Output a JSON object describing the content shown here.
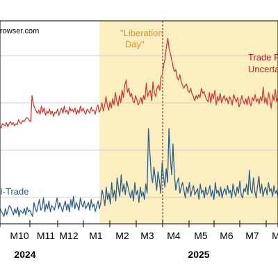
{
  "source_text": "rowser.com",
  "chart_data": {
    "type": "line",
    "title": "",
    "xlabel": "",
    "ylabel": "",
    "x_tick_labels": [
      "M10",
      "M11",
      "M12",
      "M1",
      "M2",
      "M3",
      "M4",
      "M5",
      "M6",
      "M7",
      "M"
    ],
    "year_labels": [
      "2024",
      "2025"
    ],
    "grid": true,
    "shaded_region": {
      "start": "M1 2025",
      "end": "end",
      "color": "#fbefc2"
    },
    "event_line": {
      "at": "2025-04-02",
      "color": "#8b1a1a"
    },
    "annotations": [
      {
        "text_lines": [
          "\"Liberation",
          "Day\""
        ],
        "color": "#e8901a"
      },
      {
        "text_lines": [
          "Trade P",
          "Uncerta"
        ],
        "color": "#c0181e"
      },
      {
        "text_lines": [
          "I-Trade"
        ],
        "color": "#2c5f8a"
      }
    ],
    "series": [
      {
        "color": "#d23a35",
        "values": [
          20,
          18,
          19,
          17,
          15,
          16,
          14,
          18,
          17,
          16,
          19,
          15,
          18,
          20,
          17,
          19,
          16,
          18,
          17,
          22,
          19,
          18,
          21,
          20,
          22,
          24,
          23,
          21,
          20,
          45,
          37,
          33,
          30,
          28,
          31,
          27,
          35,
          29,
          33,
          26,
          30,
          28,
          32,
          27,
          30,
          25,
          29,
          28,
          32,
          26,
          30,
          33,
          28,
          35,
          29,
          31,
          27,
          34,
          30,
          32,
          29,
          33,
          27,
          31,
          28,
          35,
          30,
          33,
          29,
          27,
          32,
          30,
          28,
          34,
          30,
          31,
          27,
          33,
          36,
          29,
          32,
          38,
          30,
          35,
          44,
          36,
          31,
          39,
          33,
          42,
          36,
          48,
          40,
          35,
          45,
          38,
          50,
          43,
          55,
          60,
          48,
          52,
          44,
          47,
          40,
          38,
          45,
          41,
          36,
          39,
          43,
          37,
          45,
          41,
          57,
          44,
          48,
          50,
          40,
          58,
          48,
          44,
          52,
          55,
          50,
          63,
          65,
          75,
          80,
          92,
          100,
          90,
          85,
          79,
          72,
          68,
          70,
          62,
          60,
          65,
          58,
          55,
          52,
          55,
          56,
          50,
          48,
          52,
          47,
          44,
          40,
          45,
          42,
          46,
          43,
          52,
          47,
          49,
          44,
          41,
          39,
          48,
          38,
          47,
          42,
          50,
          36,
          44,
          40,
          47,
          38,
          42,
          45,
          40,
          43,
          37,
          44,
          41,
          36,
          46,
          42,
          39,
          43,
          34,
          38,
          45,
          40,
          37,
          42,
          36,
          44,
          38,
          35,
          43,
          40,
          46,
          39,
          42,
          37,
          44,
          40,
          53,
          38,
          43,
          36,
          48,
          41,
          33,
          46,
          40,
          51,
          39,
          44
        ]
      },
      {
        "color": "#2c5f8a",
        "values": [
          5,
          8,
          3,
          7,
          4,
          9,
          6,
          5,
          3,
          8,
          4,
          7,
          10,
          9,
          6,
          4,
          8,
          5,
          9,
          3,
          7,
          6,
          5,
          8,
          4,
          9,
          6,
          7,
          5,
          3,
          12,
          8,
          6,
          10,
          14,
          7,
          9,
          15,
          6,
          11,
          8,
          13,
          6,
          10,
          9,
          7,
          11,
          15,
          8,
          12,
          9,
          6,
          10,
          13,
          7,
          11,
          6,
          14,
          9,
          16,
          8,
          12,
          10,
          7,
          15,
          11,
          9,
          13,
          8,
          10,
          12,
          7,
          14,
          9,
          11,
          6,
          10,
          13,
          8,
          12,
          20,
          16,
          10,
          22,
          14,
          18,
          11,
          25,
          15,
          20,
          13,
          28,
          21,
          16,
          30,
          19,
          24,
          17,
          26,
          22,
          18,
          15,
          20,
          13,
          25,
          17,
          20,
          12,
          22,
          16,
          19,
          14,
          24,
          18,
          60,
          45,
          30,
          25,
          35,
          28,
          20,
          32,
          26,
          18,
          38,
          29,
          22,
          34,
          25,
          60,
          42,
          30,
          50,
          30,
          20,
          25,
          28,
          18,
          22,
          25,
          20,
          15,
          22,
          18,
          25,
          16,
          20,
          23,
          17,
          19,
          21,
          14,
          24,
          18,
          20,
          15,
          22,
          17,
          19,
          23,
          16,
          20,
          14,
          25,
          18,
          20,
          16,
          22,
          15,
          19,
          21,
          17,
          23,
          18,
          20,
          15,
          24,
          19,
          16,
          22,
          18,
          26,
          17,
          15,
          21,
          19,
          24,
          17,
          33,
          20,
          18,
          28,
          19,
          15,
          23,
          29,
          18,
          24,
          16,
          20,
          22,
          17,
          25,
          19,
          21,
          16,
          23,
          18,
          20,
          15
        ]
      }
    ]
  }
}
